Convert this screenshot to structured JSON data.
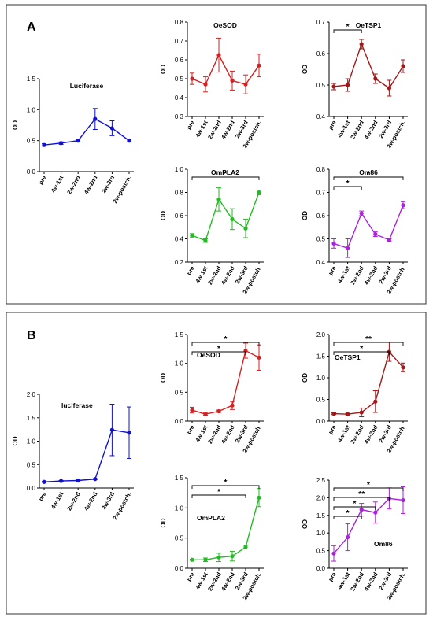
{
  "panels": [
    {
      "label": "A"
    },
    {
      "label": "B"
    }
  ],
  "chart_data": [
    {
      "panel": "A",
      "type": "line",
      "title": "Luciferase",
      "ylabel": "OD",
      "categories": [
        "pre",
        "4w-1st",
        "2w-2nd",
        "4w-2nd",
        "2w-3rd",
        "2w-postch."
      ],
      "ylim": [
        0.0,
        1.5
      ],
      "yticks": [
        "0.0",
        "0.5",
        "1.0",
        "1.5"
      ],
      "color": "#1010d0",
      "values": [
        0.43,
        0.46,
        0.5,
        0.85,
        0.7,
        0.5
      ],
      "errors": [
        0.02,
        0.02,
        0.02,
        0.17,
        0.12,
        0.02
      ],
      "significance": []
    },
    {
      "panel": "A",
      "type": "line",
      "title": "OeSOD",
      "ylabel": "OD",
      "categories": [
        "pre",
        "4w-1st",
        "2w-2nd",
        "4w-2nd",
        "2w-3rd",
        "2w-postch."
      ],
      "ylim": [
        0.3,
        0.8
      ],
      "yticks": [
        "0.3",
        "0.4",
        "0.5",
        "0.6",
        "0.7",
        "0.8"
      ],
      "color": "#d42020",
      "values": [
        0.5,
        0.47,
        0.625,
        0.49,
        0.47,
        0.57
      ],
      "errors": [
        0.03,
        0.04,
        0.09,
        0.05,
        0.05,
        0.06
      ],
      "significance": []
    },
    {
      "panel": "A",
      "type": "line",
      "title": "OeTSP1",
      "ylabel": "OD",
      "categories": [
        "pre",
        "4w-1st",
        "2w-2nd",
        "4w-2nd",
        "2w-3rd",
        "2w-postch."
      ],
      "ylim": [
        0.4,
        0.7
      ],
      "yticks": [
        "0.4",
        "0.5",
        "0.6",
        "0.7"
      ],
      "color": "#a01818",
      "values": [
        0.495,
        0.5,
        0.63,
        0.52,
        0.49,
        0.56
      ],
      "errors": [
        0.01,
        0.02,
        0.015,
        0.015,
        0.025,
        0.02
      ],
      "significance": [
        {
          "from": 0,
          "to": 2,
          "label": "*"
        }
      ]
    },
    {
      "panel": "A",
      "type": "line",
      "title": "OmPLA2",
      "ylabel": "OD",
      "categories": [
        "pre",
        "4w-1st",
        "2w-2nd",
        "4w-2nd",
        "2w-3rd",
        "2w-postch."
      ],
      "ylim": [
        0.2,
        1.0
      ],
      "yticks": [
        "0.2",
        "0.4",
        "0.6",
        "0.8",
        "1.0"
      ],
      "color": "#22bb22",
      "values": [
        0.43,
        0.385,
        0.74,
        0.57,
        0.49,
        0.8
      ],
      "errors": [
        0.015,
        0.015,
        0.1,
        0.09,
        0.08,
        0.02
      ],
      "significance": [
        {
          "from": 0,
          "to": 5,
          "label": "*"
        }
      ]
    },
    {
      "panel": "A",
      "type": "line",
      "title": "Om86",
      "ylabel": "OD",
      "categories": [
        "pre",
        "4w-1st",
        "2w-2nd",
        "4w-2nd",
        "2w-3rd",
        "2w-postch."
      ],
      "ylim": [
        0.4,
        0.8
      ],
      "yticks": [
        "0.4",
        "0.5",
        "0.6",
        "0.7",
        "0.8"
      ],
      "color": "#aa22dd",
      "values": [
        0.48,
        0.46,
        0.61,
        0.52,
        0.495,
        0.645
      ],
      "errors": [
        0.02,
        0.04,
        0.01,
        0.01,
        0.005,
        0.015
      ],
      "significance": [
        {
          "from": 0,
          "to": 2,
          "label": "*"
        },
        {
          "from": 0,
          "to": 5,
          "label": "*"
        }
      ]
    },
    {
      "panel": "B",
      "type": "line",
      "title": "luciferase",
      "ylabel": "OD",
      "categories": [
        "pre",
        "4w-1st",
        "2w-2nd",
        "4w-2nd",
        "2w-3rd",
        "2w-postch."
      ],
      "ylim": [
        0.0,
        2.0
      ],
      "yticks": [
        "0.0",
        "0.5",
        "1.0",
        "1.5",
        "2.0"
      ],
      "color": "#1010d0",
      "values": [
        0.13,
        0.15,
        0.16,
        0.19,
        1.24,
        1.18
      ],
      "errors": [
        0.01,
        0.01,
        0.01,
        0.01,
        0.55,
        0.55
      ],
      "significance": []
    },
    {
      "panel": "B",
      "type": "line",
      "title": "OeSOD",
      "ylabel": "OD",
      "categories": [
        "pre",
        "4w-1st",
        "2w-2nd",
        "4w-2nd",
        "2w-3rd",
        "2w-postch."
      ],
      "ylim": [
        0.0,
        1.5
      ],
      "yticks": [
        "0.0",
        "0.5",
        "1.0",
        "1.5"
      ],
      "color": "#d42020",
      "values": [
        0.19,
        0.12,
        0.17,
        0.27,
        1.22,
        1.1
      ],
      "errors": [
        0.05,
        0.02,
        0.02,
        0.07,
        0.13,
        0.22
      ],
      "significance": [
        {
          "from": 0,
          "to": 4,
          "label": "*"
        },
        {
          "from": 0,
          "to": 5,
          "label": "*"
        }
      ]
    },
    {
      "panel": "B",
      "type": "line",
      "title": "OeTSP1",
      "ylabel": "OD",
      "categories": [
        "pre",
        "4w-1st",
        "2w-2nd",
        "4w-2nd",
        "2w-3rd",
        "2w-postch."
      ],
      "ylim": [
        0.0,
        2.0
      ],
      "yticks": [
        "0.0",
        "0.5",
        "1.0",
        "1.5",
        "2.0"
      ],
      "color": "#a01818",
      "values": [
        0.17,
        0.16,
        0.2,
        0.45,
        1.6,
        1.24
      ],
      "errors": [
        0.02,
        0.02,
        0.1,
        0.25,
        0.22,
        0.1
      ],
      "significance": [
        {
          "from": 0,
          "to": 4,
          "label": "*"
        },
        {
          "from": 0,
          "to": 5,
          "label": "**"
        }
      ]
    },
    {
      "panel": "B",
      "type": "line",
      "title": "OmPLA2",
      "ylabel": "OD",
      "categories": [
        "pre",
        "4w-1st",
        "2w-2nd",
        "4w-2nd",
        "2w-3rd",
        "2w-postch."
      ],
      "ylim": [
        0.0,
        1.5
      ],
      "yticks": [
        "0.0",
        "0.5",
        "1.0",
        "1.5"
      ],
      "color": "#22bb22",
      "values": [
        0.14,
        0.14,
        0.18,
        0.2,
        0.35,
        1.17
      ],
      "errors": [
        0.01,
        0.03,
        0.07,
        0.08,
        0.03,
        0.15
      ],
      "significance": [
        {
          "from": 0,
          "to": 4,
          "label": "*"
        },
        {
          "from": 0,
          "to": 5,
          "label": "*"
        }
      ]
    },
    {
      "panel": "B",
      "type": "line",
      "title": "Om86",
      "ylabel": "OD",
      "categories": [
        "pre",
        "4w-1st",
        "2w-2nd",
        "4w-2nd",
        "2w-3rd",
        "2w-postch."
      ],
      "ylim": [
        0.0,
        2.5
      ],
      "yticks": [
        "0.0",
        "0.5",
        "1.0",
        "1.5",
        "2.0",
        "2.5"
      ],
      "color": "#aa22dd",
      "values": [
        0.42,
        0.88,
        1.66,
        1.58,
        1.98,
        1.93
      ],
      "errors": [
        0.22,
        0.38,
        0.18,
        0.3,
        0.3,
        0.38
      ],
      "significance": [
        {
          "from": 0,
          "to": 2,
          "label": "*"
        },
        {
          "from": 0,
          "to": 3,
          "label": "*"
        },
        {
          "from": 0,
          "to": 4,
          "label": "**"
        },
        {
          "from": 0,
          "to": 5,
          "label": "*"
        }
      ]
    }
  ]
}
